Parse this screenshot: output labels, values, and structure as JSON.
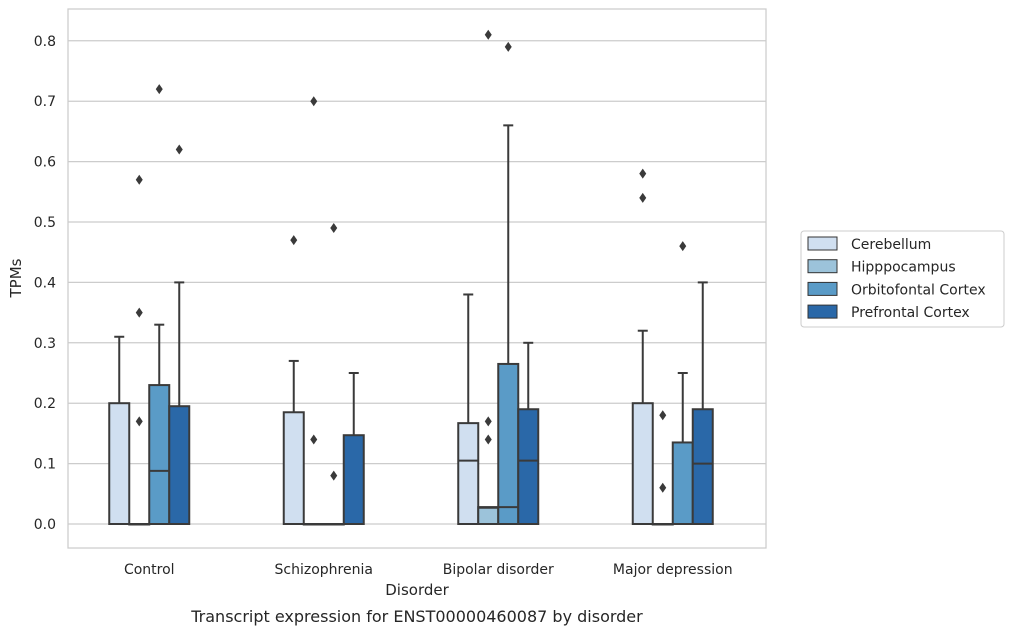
{
  "chart_data": {
    "type": "box",
    "caption": "Transcript expression for ENST00000460087 by disorder",
    "xlabel": "Disorder",
    "ylabel": "TPMs",
    "ylim": [
      -0.04,
      0.85
    ],
    "yticks": [
      "0.0",
      "0.1",
      "0.2",
      "0.3",
      "0.4",
      "0.5",
      "0.6",
      "0.7",
      "0.8"
    ],
    "grid": "horizontal",
    "legend_position": "right",
    "categories": [
      "Control",
      "Schizophrenia",
      "Bipolar disorder",
      "Major depression"
    ],
    "series": [
      {
        "name": "Cerebellum",
        "color": "#d0dff0",
        "boxes": [
          {
            "min": 0.0,
            "q1": 0.0,
            "median": 0.0,
            "q3": 0.2,
            "max": 0.31,
            "outliers": []
          },
          {
            "min": 0.0,
            "q1": 0.0,
            "median": 0.0,
            "q3": 0.185,
            "max": 0.27,
            "outliers": [
              0.47
            ]
          },
          {
            "min": 0.0,
            "q1": 0.0,
            "median": 0.105,
            "q3": 0.167,
            "max": 0.38,
            "outliers": []
          },
          {
            "min": 0.0,
            "q1": 0.0,
            "median": 0.0,
            "q3": 0.2,
            "max": 0.32,
            "outliers": [
              0.54,
              0.58
            ]
          }
        ]
      },
      {
        "name": "Hipppocampus",
        "color": "#9cc3da",
        "boxes": [
          {
            "min": 0.0,
            "q1": 0.0,
            "median": 0.0,
            "q3": 0.0,
            "max": 0.0,
            "outliers": [
              0.17,
              0.35,
              0.57
            ]
          },
          {
            "min": 0.0,
            "q1": 0.0,
            "median": 0.0,
            "q3": 0.0,
            "max": 0.0,
            "outliers": [
              0.14,
              0.7
            ]
          },
          {
            "min": 0.0,
            "q1": 0.0,
            "median": 0.027,
            "q3": 0.028,
            "max": 0.028,
            "outliers": [
              0.14,
              0.17,
              0.81
            ]
          },
          {
            "min": 0.0,
            "q1": 0.0,
            "median": 0.0,
            "q3": 0.0,
            "max": 0.0,
            "outliers": [
              0.06,
              0.18
            ]
          }
        ]
      },
      {
        "name": "Orbitofontal Cortex",
        "color": "#5a9bc7",
        "boxes": [
          {
            "min": 0.0,
            "q1": 0.0,
            "median": 0.088,
            "q3": 0.23,
            "max": 0.33,
            "outliers": [
              0.72
            ]
          },
          {
            "min": 0.0,
            "q1": 0.0,
            "median": 0.0,
            "q3": 0.0,
            "max": 0.0,
            "outliers": [
              0.08,
              0.49
            ]
          },
          {
            "min": 0.0,
            "q1": 0.0,
            "median": 0.028,
            "q3": 0.265,
            "max": 0.66,
            "outliers": [
              0.79
            ]
          },
          {
            "min": 0.0,
            "q1": 0.0,
            "median": 0.0,
            "q3": 0.135,
            "max": 0.25,
            "outliers": [
              0.46
            ]
          }
        ]
      },
      {
        "name": "Prefrontal Cortex",
        "color": "#2a68a8",
        "boxes": [
          {
            "min": 0.0,
            "q1": 0.0,
            "median": 0.0,
            "q3": 0.195,
            "max": 0.4,
            "outliers": [
              0.62
            ]
          },
          {
            "min": 0.0,
            "q1": 0.0,
            "median": 0.0,
            "q3": 0.147,
            "max": 0.25,
            "outliers": []
          },
          {
            "min": 0.0,
            "q1": 0.0,
            "median": 0.105,
            "q3": 0.19,
            "max": 0.3,
            "outliers": []
          },
          {
            "min": 0.0,
            "q1": 0.0,
            "median": 0.1,
            "q3": 0.19,
            "max": 0.4,
            "outliers": []
          }
        ]
      }
    ]
  }
}
